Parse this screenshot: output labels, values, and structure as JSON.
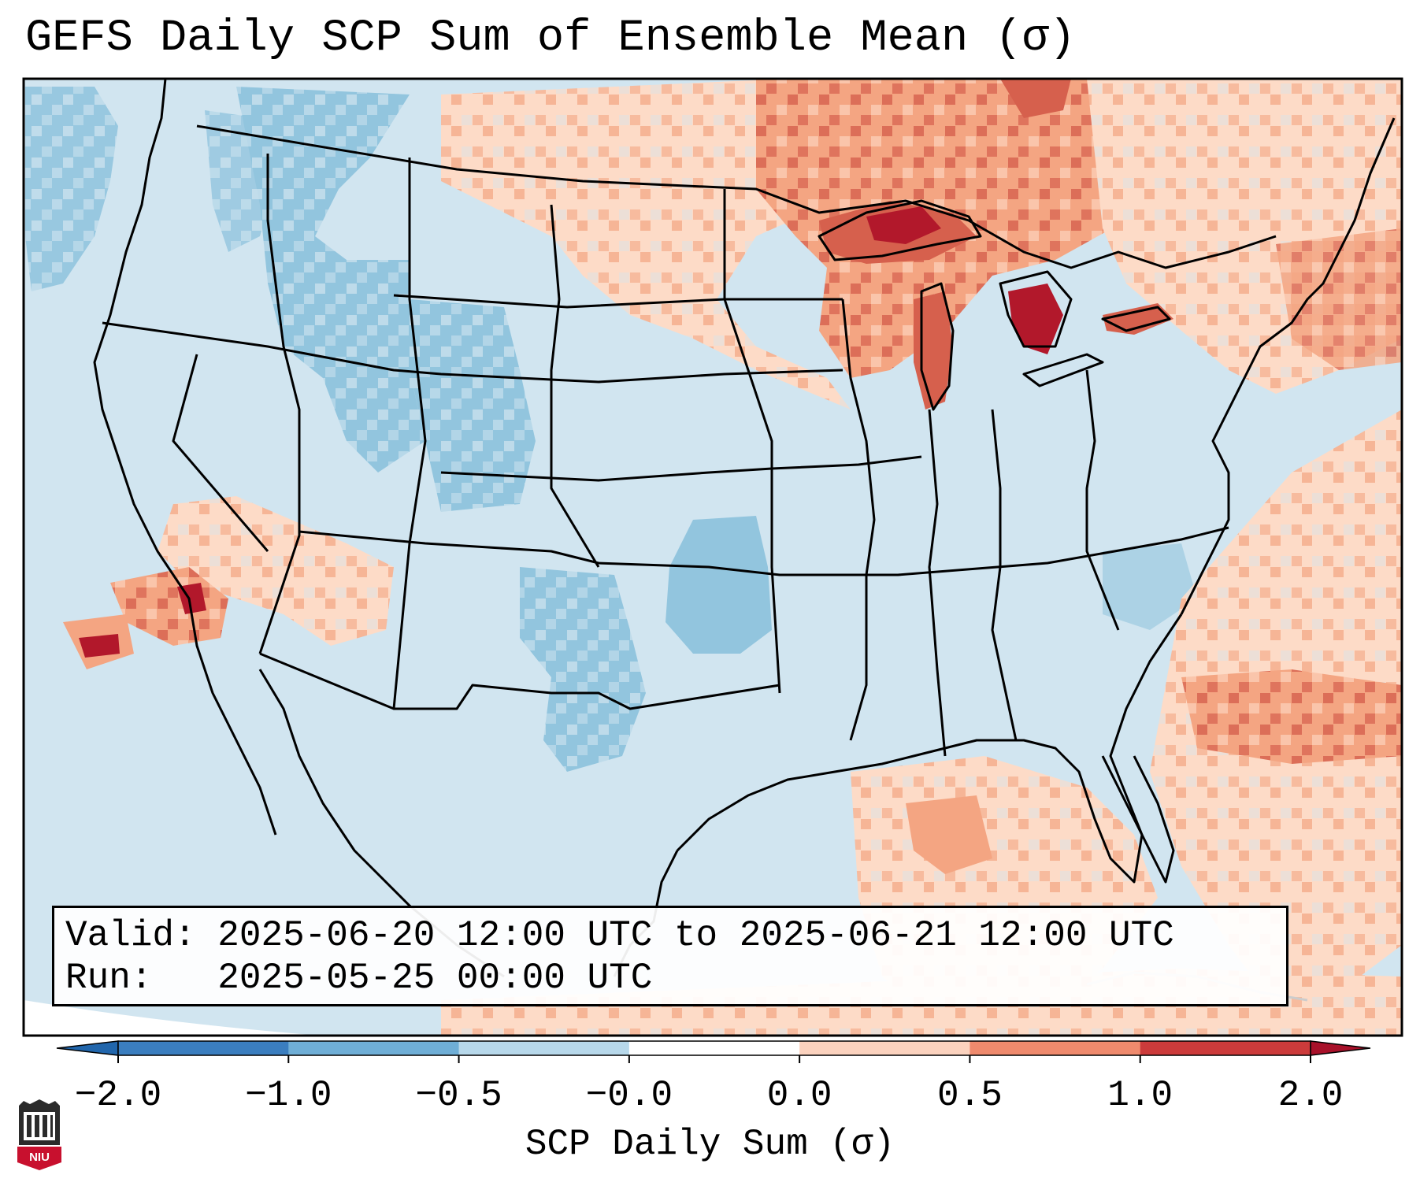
{
  "title": "GEFS Daily SCP Sum of Ensemble Mean (σ)",
  "info": {
    "valid_label": "Valid:",
    "valid_value": "2025-06-20 12:00 UTC to 2025-06-21 12:00 UTC",
    "run_label": "Run:",
    "run_value": "2025-05-25 00:00 UTC"
  },
  "colorbar": {
    "label": "SCP Daily Sum (σ)",
    "ticks": [
      "−2.0",
      "−1.0",
      "−0.5",
      "−0.0",
      "0.0",
      "0.5",
      "1.0",
      "2.0"
    ],
    "colors": [
      "#3b7ebf",
      "#6faed6",
      "#b7d8ea",
      "#ffffff",
      "#fbd2be",
      "#ef8a6d",
      "#cc3b3b"
    ],
    "extend_low_color": "#2166ac",
    "extend_high_color": "#a8112a"
  },
  "logo": {
    "text": "NIU",
    "icon": "niu-logo-icon",
    "color": "#c8102e"
  },
  "map": {
    "background_color": "#d1e5f0",
    "regions": [
      {
        "name": "Pacific Northwest",
        "category": "-0.5 to -1.0",
        "color": "#92c5de"
      },
      {
        "name": "Idaho / Montana",
        "category": "-0.5 to -1.0",
        "color": "#92c5de"
      },
      {
        "name": "Wyoming / Colorado",
        "category": "-0.5 to -1.0",
        "color": "#92c5de"
      },
      {
        "name": "Oklahoma",
        "category": "-0.5 to -1.0",
        "color": "#92c5de"
      },
      {
        "name": "West Texas",
        "category": "-0.5 to -1.0",
        "color": "#92c5de"
      },
      {
        "name": "Northern Plains",
        "category": "0.0 to 0.5",
        "color": "#fddbc7"
      },
      {
        "name": "Upper Great Lakes",
        "category": "0.5 to 2.0",
        "color": "#d6604d"
      },
      {
        "name": "Michigan",
        "category": "1.0 to 2.0",
        "color": "#b2182b"
      },
      {
        "name": "Southwest Deserts",
        "category": "0.5 to 1.0",
        "color": "#f4a582"
      },
      {
        "name": "Gulf of Mexico",
        "category": "0.5 to 1.0",
        "color": "#f4a582"
      },
      {
        "name": "Western Atlantic",
        "category": "0.0 to 1.0",
        "color": "#f4a582"
      },
      {
        "name": "New England",
        "category": "0.5 to 1.0",
        "color": "#f4a582"
      }
    ]
  }
}
